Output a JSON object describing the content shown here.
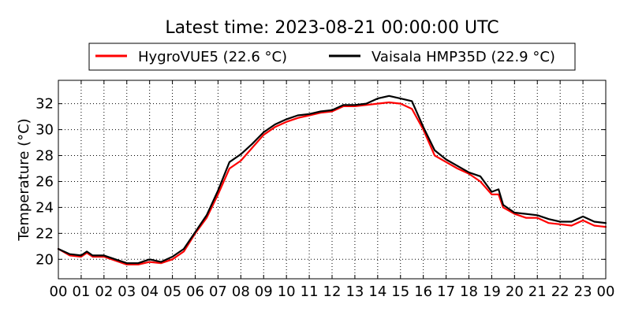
{
  "chart_data": {
    "type": "line",
    "title": "Latest time: 2023-08-21 00:00:00 UTC",
    "xlabel": "",
    "ylabel": "Temperature (°C)",
    "xlim": [
      0,
      24
    ],
    "ylim": [
      18.5,
      33.8
    ],
    "grid": true,
    "legend_position": "top-center",
    "x_ticks": [
      0,
      1,
      2,
      3,
      4,
      5,
      6,
      7,
      8,
      9,
      10,
      11,
      12,
      13,
      14,
      15,
      16,
      17,
      18,
      19,
      20,
      21,
      22,
      23,
      24
    ],
    "x_tick_labels": [
      "00",
      "01",
      "02",
      "03",
      "04",
      "05",
      "06",
      "07",
      "08",
      "09",
      "10",
      "11",
      "12",
      "13",
      "14",
      "15",
      "16",
      "17",
      "18",
      "19",
      "20",
      "21",
      "22",
      "23",
      "00"
    ],
    "y_ticks": [
      20,
      22,
      24,
      26,
      28,
      30,
      32
    ],
    "y_tick_labels": [
      "20",
      "22",
      "24",
      "26",
      "28",
      "30",
      "32"
    ],
    "series": [
      {
        "name": "HygroVUE5 (22.6 °C)",
        "color": "#ff0000",
        "x": [
          0,
          0.5,
          1,
          1.25,
          1.5,
          2,
          2.5,
          3,
          3.5,
          4,
          4.5,
          5,
          5.5,
          6,
          6.5,
          7,
          7.5,
          8,
          8.5,
          9,
          9.5,
          10,
          10.5,
          11,
          11.5,
          12,
          12.5,
          13,
          13.5,
          14,
          14.5,
          15,
          15.5,
          16,
          16.5,
          17,
          17.5,
          18,
          18.5,
          19,
          19.3,
          19.5,
          20,
          20.5,
          21,
          21.5,
          22,
          22.5,
          23,
          23.5,
          24
        ],
        "y": [
          20.8,
          20.3,
          20.2,
          20.5,
          20.2,
          20.2,
          19.9,
          19.6,
          19.6,
          19.8,
          19.7,
          20.0,
          20.6,
          22.0,
          23.2,
          25.0,
          27.0,
          27.6,
          28.6,
          29.6,
          30.2,
          30.6,
          30.9,
          31.1,
          31.3,
          31.4,
          31.8,
          31.8,
          31.9,
          32.0,
          32.1,
          32.0,
          31.6,
          30.0,
          28.0,
          27.5,
          27.0,
          26.6,
          26.0,
          25.0,
          25.0,
          24.0,
          23.5,
          23.2,
          23.2,
          22.8,
          22.7,
          22.6,
          23.0,
          22.6,
          22.5
        ]
      },
      {
        "name": "Vaisala HMP35D (22.9 °C)",
        "color": "#000000",
        "x": [
          0,
          0.5,
          1,
          1.25,
          1.5,
          2,
          2.5,
          3,
          3.5,
          4,
          4.5,
          5,
          5.5,
          6,
          6.5,
          7,
          7.5,
          8,
          8.5,
          9,
          9.5,
          10,
          10.5,
          11,
          11.5,
          12,
          12.5,
          13,
          13.5,
          14,
          14.5,
          15,
          15.5,
          16,
          16.5,
          17,
          17.5,
          18,
          18.5,
          19,
          19.3,
          19.5,
          20,
          20.5,
          21,
          21.5,
          22,
          22.5,
          23,
          23.5,
          24
        ],
        "y": [
          20.8,
          20.4,
          20.3,
          20.6,
          20.3,
          20.3,
          20.0,
          19.7,
          19.7,
          20.0,
          19.8,
          20.2,
          20.8,
          22.1,
          23.4,
          25.3,
          27.5,
          28.1,
          28.9,
          29.8,
          30.4,
          30.8,
          31.1,
          31.2,
          31.4,
          31.5,
          31.9,
          31.9,
          32.0,
          32.4,
          32.6,
          32.4,
          32.2,
          30.2,
          28.4,
          27.7,
          27.2,
          26.7,
          26.4,
          25.2,
          25.4,
          24.2,
          23.6,
          23.5,
          23.4,
          23.1,
          22.9,
          22.9,
          23.3,
          22.9,
          22.8
        ]
      }
    ]
  }
}
